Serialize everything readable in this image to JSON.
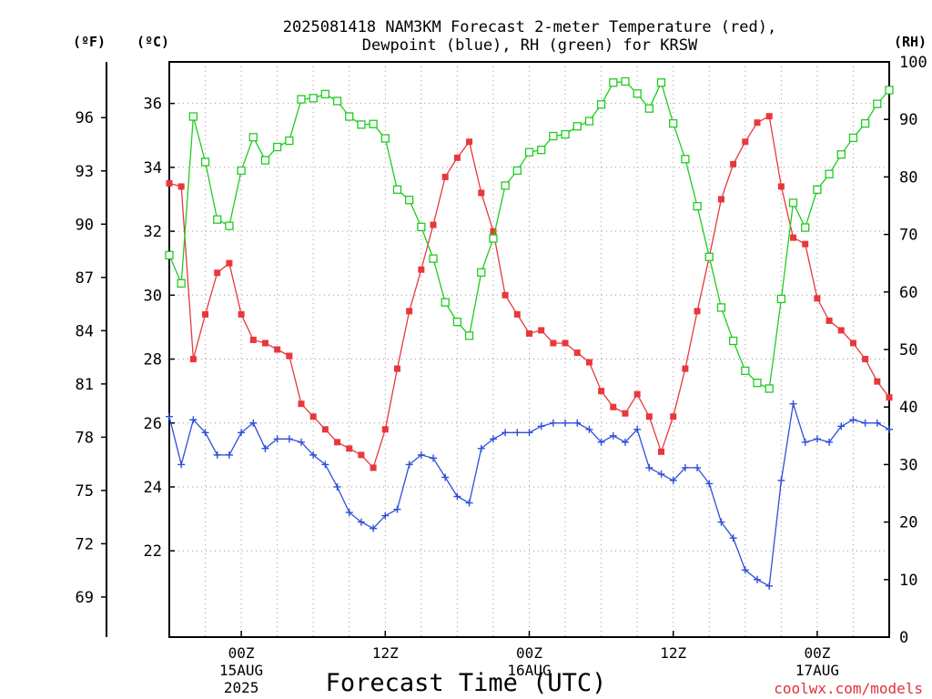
{
  "chart_data": {
    "type": "line",
    "title_line1": "2025081418 NAM3KM Forecast 2-meter Temperature (red),",
    "title_line2": "Dewpoint (blue), RH (green) for KRSW",
    "xlabel": "Forecast Time (UTC)",
    "credit": "coolwx.com/models",
    "units": {
      "f": "(ºF)",
      "c": "(ºC)",
      "rh": "(RH)"
    },
    "x_unit": "forecast hour from 2025-08-14 18Z",
    "xlim": [
      0,
      60
    ],
    "ylim_c": [
      19.3,
      37.3
    ],
    "ylim_f": [
      66.74,
      99.14
    ],
    "ylim_rh": [
      0,
      100
    ],
    "grid": true,
    "x_ticks": [
      {
        "x": 6,
        "l1": "00Z",
        "l2": "15AUG",
        "l3": "2025"
      },
      {
        "x": 18,
        "l1": "12Z",
        "l2": "",
        "l3": ""
      },
      {
        "x": 30,
        "l1": "00Z",
        "l2": "16AUG",
        "l3": ""
      },
      {
        "x": 42,
        "l1": "12Z",
        "l2": "",
        "l3": ""
      },
      {
        "x": 54,
        "l1": "00Z",
        "l2": "17AUG",
        "l3": ""
      }
    ],
    "y_ticks_c": [
      22,
      24,
      26,
      28,
      30,
      32,
      34,
      36
    ],
    "y_ticks_f": [
      69,
      72,
      75,
      78,
      81,
      84,
      87,
      90,
      93,
      96
    ],
    "y_ticks_rh": [
      0,
      10,
      20,
      30,
      40,
      50,
      60,
      70,
      80,
      90,
      100
    ],
    "series": [
      {
        "name": "2-meter Temperature",
        "color": "#e8383c",
        "axis": "c",
        "marker": "filled-square",
        "values": [
          33.5,
          33.4,
          28.0,
          29.4,
          30.7,
          31.0,
          29.4,
          28.6,
          28.5,
          28.3,
          28.1,
          26.6,
          26.2,
          25.8,
          25.4,
          25.2,
          25.0,
          24.6,
          25.8,
          27.7,
          29.5,
          30.8,
          32.2,
          33.7,
          34.3,
          34.8,
          33.2,
          32.0,
          30.0,
          29.4,
          28.8,
          28.9,
          28.5,
          28.5,
          28.2,
          27.9,
          27.0,
          26.5,
          26.3,
          26.9,
          26.2,
          25.1,
          26.2,
          27.7,
          29.5,
          31.2,
          33.0,
          34.1,
          34.8,
          35.4,
          35.6,
          33.4,
          31.8,
          31.6,
          29.9,
          29.2,
          28.9,
          28.5,
          28.0,
          27.3,
          26.8
        ],
        "min_label": "",
        "max_label": ""
      },
      {
        "name": "Dewpoint",
        "color": "#2f4fd9",
        "axis": "c",
        "marker": "plus",
        "values": [
          26.2,
          24.7,
          26.1,
          25.7,
          25.0,
          25.0,
          25.7,
          26.0,
          25.2,
          25.5,
          25.5,
          25.4,
          25.0,
          24.7,
          24.0,
          23.2,
          22.9,
          22.7,
          23.1,
          23.3,
          24.7,
          25.0,
          24.9,
          24.3,
          23.7,
          23.5,
          25.2,
          25.5,
          25.7,
          25.7,
          25.7,
          25.9,
          26.0,
          26.0,
          26.0,
          25.8,
          25.4,
          25.6,
          25.4,
          25.8,
          24.6,
          24.4,
          24.2,
          24.6,
          24.6,
          24.1,
          22.9,
          22.4,
          21.4,
          21.1,
          20.9,
          24.2,
          26.6,
          25.4,
          25.5,
          25.4,
          25.9,
          26.1,
          26.0,
          26.0,
          25.8
        ],
        "min_label": "",
        "max_label": ""
      },
      {
        "name": "RH",
        "color": "#1fcc1f",
        "axis": "rh",
        "marker": "open-square",
        "values": [
          66.4,
          61.5,
          90.5,
          82.6,
          72.6,
          71.5,
          81.1,
          86.9,
          82.9,
          85.2,
          86.3,
          93.5,
          93.7,
          94.4,
          93.2,
          90.5,
          89.1,
          89.2,
          86.7,
          77.8,
          76.0,
          71.3,
          65.8,
          58.2,
          54.8,
          52.4,
          63.4,
          69.3,
          78.5,
          81.1,
          84.3,
          84.7,
          87.1,
          87.4,
          88.8,
          89.7,
          92.6,
          96.4,
          96.6,
          94.5,
          91.9,
          96.4,
          89.3,
          83.1,
          74.9,
          66.1,
          57.3,
          51.5,
          46.3,
          44.2,
          43.2,
          58.8,
          75.5,
          71.2,
          77.8,
          80.5,
          83.9,
          86.8,
          89.3,
          92.7,
          95.1
        ],
        "min_label": "",
        "max_label": ""
      }
    ]
  }
}
